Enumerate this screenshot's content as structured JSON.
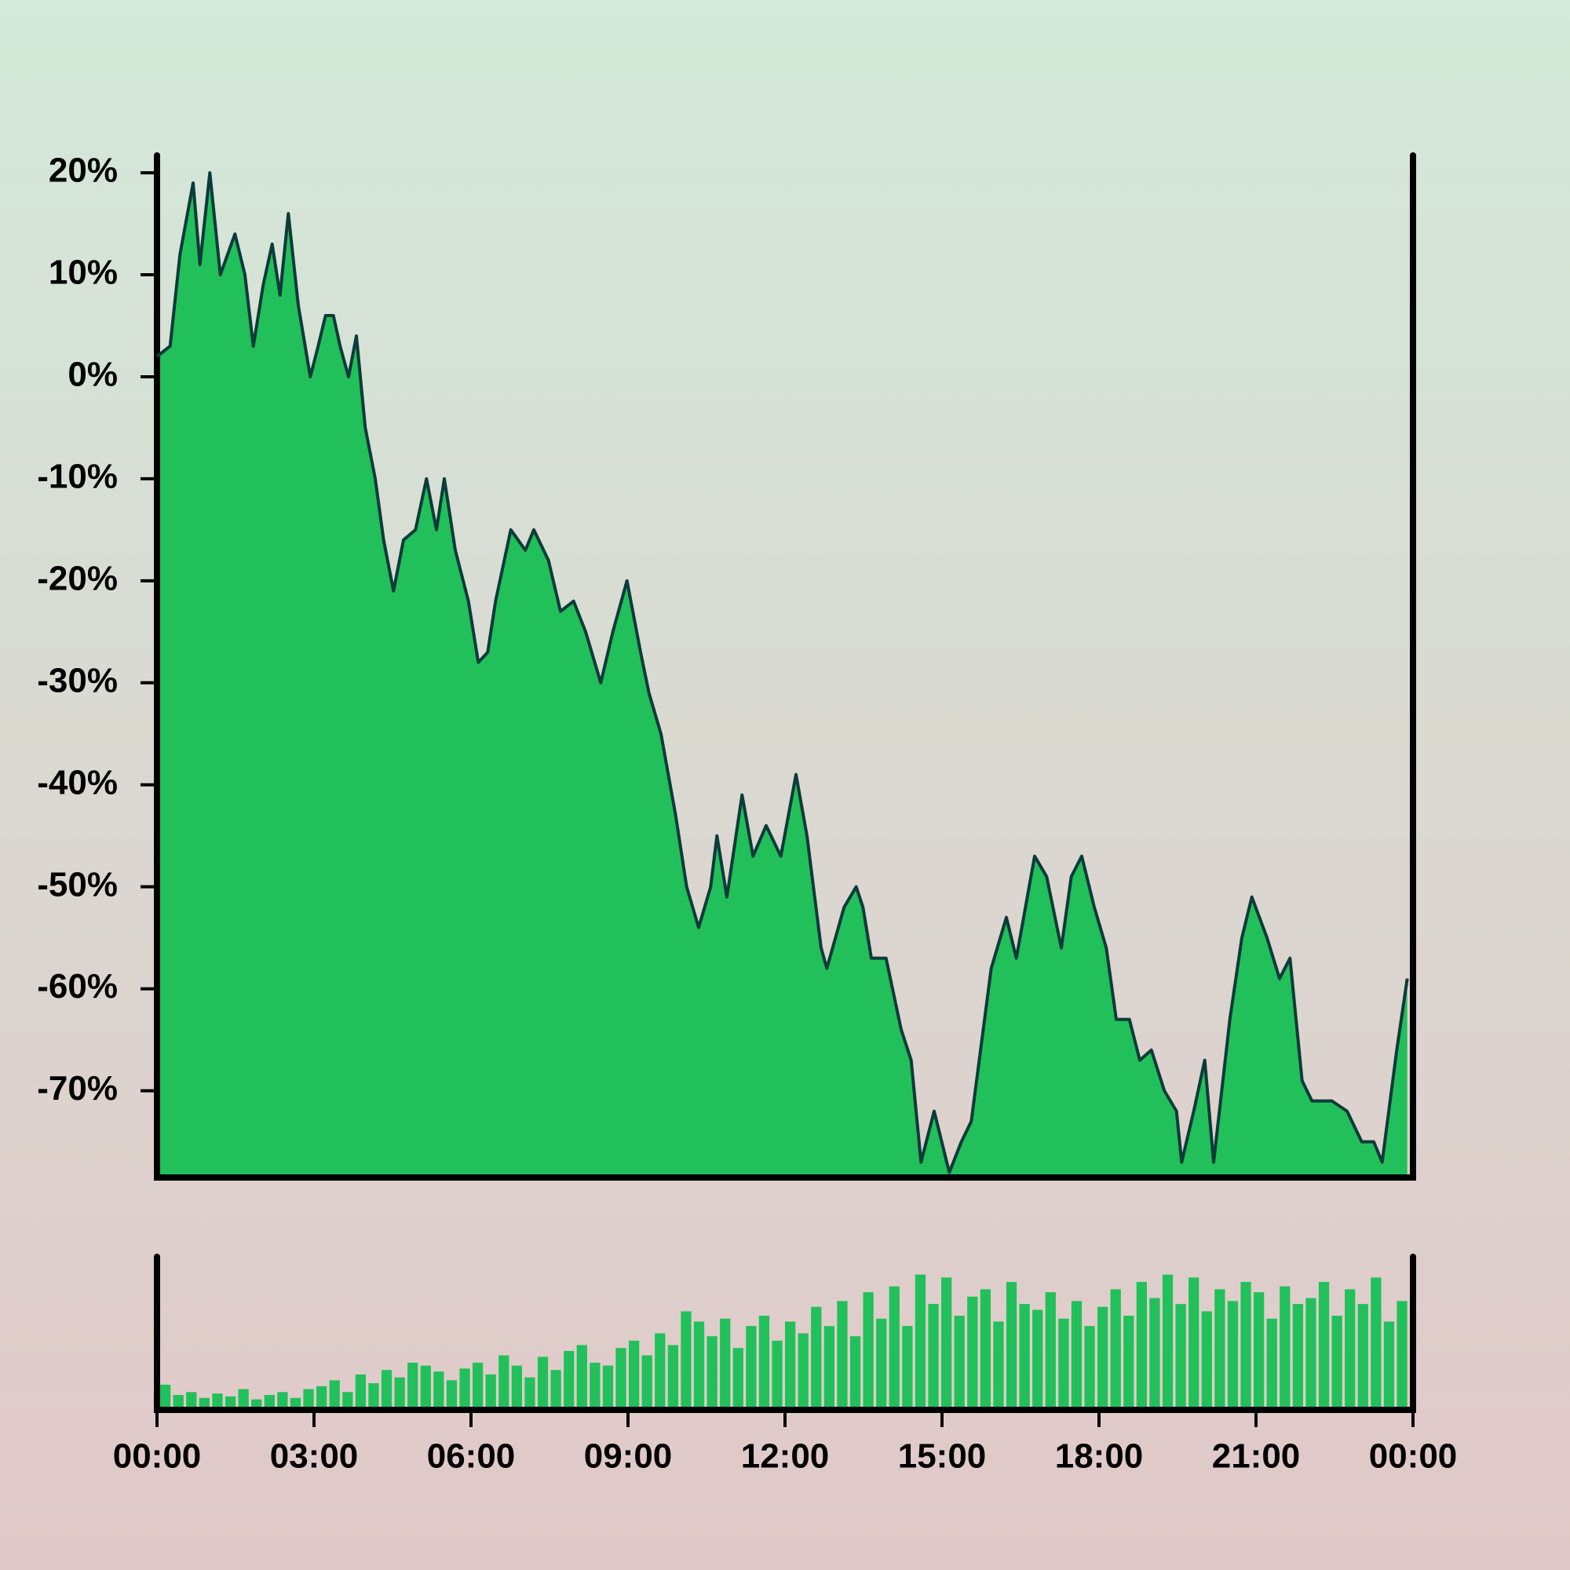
{
  "chart_data": [
    {
      "type": "area",
      "color": "#22c05a",
      "line_color": "#0c3b3a",
      "xlim": [
        0,
        24
      ],
      "ylim": [
        -78.5,
        21.7
      ],
      "yticks": [
        {
          "value": 20,
          "label": "20%"
        },
        {
          "value": 10,
          "label": "10%"
        },
        {
          "value": 0,
          "label": "0%"
        },
        {
          "value": -10,
          "label": "-10%"
        },
        {
          "value": -20,
          "label": "-20%"
        },
        {
          "value": -30,
          "label": "-30%"
        },
        {
          "value": -40,
          "label": "-40%"
        },
        {
          "value": -50,
          "label": "-50%"
        },
        {
          "value": -60,
          "label": "-60%"
        },
        {
          "value": -70,
          "label": "-70%"
        }
      ],
      "x": [
        0,
        0.25,
        0.44,
        0.69,
        0.82,
        1.01,
        1.21,
        1.49,
        1.68,
        1.84,
        2.03,
        2.2,
        2.35,
        2.51,
        2.7,
        2.93,
        3.08,
        3.22,
        3.37,
        3.5,
        3.66,
        3.81,
        3.98,
        4.17,
        4.33,
        4.52,
        4.71,
        4.94,
        5.15,
        5.34,
        5.49,
        5.7,
        5.95,
        6.14,
        6.32,
        6.47,
        6.76,
        7.04,
        7.2,
        7.48,
        7.71,
        7.96,
        8.19,
        8.48,
        8.71,
        8.98,
        9.24,
        9.4,
        9.63,
        9.91,
        10.12,
        10.35,
        10.58,
        10.7,
        10.89,
        11.18,
        11.39,
        11.64,
        11.92,
        12.21,
        12.42,
        12.69,
        12.8,
        13.13,
        13.36,
        13.49,
        13.65,
        13.93,
        14.22,
        14.41,
        14.6,
        14.85,
        15.14,
        15.37,
        15.56,
        15.94,
        16.23,
        16.42,
        16.77,
        17.0,
        17.28,
        17.47,
        17.67,
        17.91,
        18.14,
        18.33,
        18.58,
        18.78,
        19.0,
        19.25,
        19.48,
        19.58,
        19.81,
        20.02,
        20.19,
        20.5,
        20.73,
        20.92,
        21.21,
        21.45,
        21.65,
        21.88,
        22.07,
        22.45,
        22.74,
        23.02,
        23.25,
        23.41,
        23.69,
        23.89
      ],
      "values": [
        2,
        3,
        12,
        19,
        11,
        20,
        10,
        14,
        10,
        3,
        9,
        13,
        8,
        16,
        7,
        0,
        3,
        6,
        6,
        3,
        0,
        4,
        -5,
        -10,
        -16,
        -21,
        -16,
        -15,
        -10,
        -15,
        -10,
        -17,
        -22,
        -28,
        -27,
        -22,
        -15,
        -17,
        -15,
        -18,
        -23,
        -22,
        -25,
        -30,
        -25,
        -20,
        -27,
        -31,
        -35,
        -43,
        -50,
        -54,
        -50,
        -45,
        -51,
        -41,
        -47,
        -44,
        -47,
        -39,
        -45,
        -56,
        -58,
        -52,
        -50,
        -52,
        -57,
        -57,
        -64,
        -67,
        -77,
        -72,
        -78,
        -75,
        -73,
        -58,
        -53,
        -57,
        -47,
        -49,
        -56,
        -49,
        -47,
        -52,
        -56,
        -63,
        -63,
        -67,
        -66,
        -70,
        -72,
        -77,
        -72,
        -67,
        -77,
        -63,
        -55,
        -51,
        -55,
        -59,
        -57,
        -69,
        -71,
        -71,
        -72,
        -75,
        -75,
        -77,
        -66,
        -59
      ]
    },
    {
      "type": "bar",
      "color": "#22c05a",
      "xlim": [
        0,
        24
      ],
      "ylim": [
        0,
        100
      ],
      "xticks": [
        {
          "value": 0,
          "label": "00:00"
        },
        {
          "value": 3,
          "label": "03:00"
        },
        {
          "value": 6,
          "label": "06:00"
        },
        {
          "value": 9,
          "label": "09:00"
        },
        {
          "value": 12,
          "label": "12:00"
        },
        {
          "value": 15,
          "label": "15:00"
        },
        {
          "value": 18,
          "label": "18:00"
        },
        {
          "value": 21,
          "label": "21:00"
        },
        {
          "value": 24,
          "label": "00:00"
        }
      ],
      "x": [
        0,
        0.25,
        0.5,
        0.75,
        1,
        1.25,
        1.5,
        1.75,
        2,
        2.25,
        2.5,
        2.75,
        3,
        3.25,
        3.5,
        3.75,
        4,
        4.25,
        4.5,
        4.75,
        5,
        5.25,
        5.5,
        5.75,
        6,
        6.25,
        6.5,
        6.75,
        7,
        7.25,
        7.5,
        7.75,
        8,
        8.25,
        8.5,
        8.75,
        9,
        9.25,
        9.5,
        9.75,
        10,
        10.25,
        10.5,
        10.75,
        11,
        11.25,
        11.5,
        11.75,
        12,
        12.25,
        12.5,
        12.75,
        13,
        13.25,
        13.5,
        13.75,
        14,
        14.25,
        14.5,
        14.75,
        15,
        15.25,
        15.5,
        15.75,
        16,
        16.25,
        16.5,
        16.75,
        17,
        17.25,
        17.5,
        17.75,
        18,
        18.25,
        18.5,
        18.75,
        19,
        19.25,
        19.5,
        19.75,
        20,
        20.25,
        20.5,
        20.75,
        21,
        21.25,
        21.5,
        21.75,
        22,
        22.25,
        22.5,
        22.75,
        23,
        23.25,
        23.5,
        23.75
      ],
      "values": [
        15,
        8,
        10,
        6,
        9,
        7,
        12,
        5,
        8,
        10,
        6,
        12,
        14,
        18,
        10,
        22,
        16,
        25,
        20,
        30,
        28,
        24,
        18,
        26,
        30,
        22,
        35,
        28,
        20,
        34,
        25,
        38,
        42,
        30,
        28,
        40,
        45,
        35,
        50,
        42,
        65,
        58,
        48,
        60,
        40,
        55,
        62,
        45,
        58,
        50,
        68,
        55,
        72,
        48,
        78,
        60,
        82,
        55,
        90,
        70,
        88,
        62,
        75,
        80,
        58,
        85,
        70,
        66,
        78,
        60,
        72,
        55,
        68,
        80,
        62,
        85,
        74,
        90,
        70,
        88,
        65,
        80,
        72,
        85,
        78,
        60,
        82,
        70,
        74,
        85,
        62,
        80,
        70,
        88,
        58,
        72
      ]
    }
  ]
}
